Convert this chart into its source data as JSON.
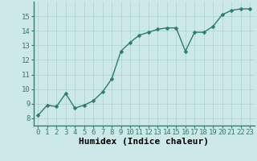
{
  "x": [
    0,
    1,
    2,
    3,
    4,
    5,
    6,
    7,
    8,
    9,
    10,
    11,
    12,
    13,
    14,
    15,
    16,
    17,
    18,
    19,
    20,
    21,
    22,
    23
  ],
  "y": [
    8.2,
    8.9,
    8.8,
    9.7,
    8.7,
    8.9,
    9.2,
    9.8,
    10.7,
    12.6,
    13.2,
    13.7,
    13.9,
    14.1,
    14.2,
    14.2,
    12.6,
    13.9,
    13.9,
    14.3,
    15.1,
    15.4,
    15.5,
    15.5
  ],
  "line_color": "#2e7b6e",
  "marker_color": "#2e7b6e",
  "bg_color": "#cce8e8",
  "grid_color": "#b0d4d4",
  "axis_color": "#3a7a6a",
  "xlabel": "Humidex (Indice chaleur)",
  "xlabel_fontsize": 8,
  "xlim": [
    -0.5,
    23.5
  ],
  "ylim": [
    7.5,
    16.0
  ],
  "yticks": [
    8,
    9,
    10,
    11,
    12,
    13,
    14,
    15
  ],
  "xticks": [
    0,
    1,
    2,
    3,
    4,
    5,
    6,
    7,
    8,
    9,
    10,
    11,
    12,
    13,
    14,
    15,
    16,
    17,
    18,
    19,
    20,
    21,
    22,
    23
  ],
  "tick_fontsize": 6.5,
  "line_width": 1.0,
  "marker_size": 2.5
}
